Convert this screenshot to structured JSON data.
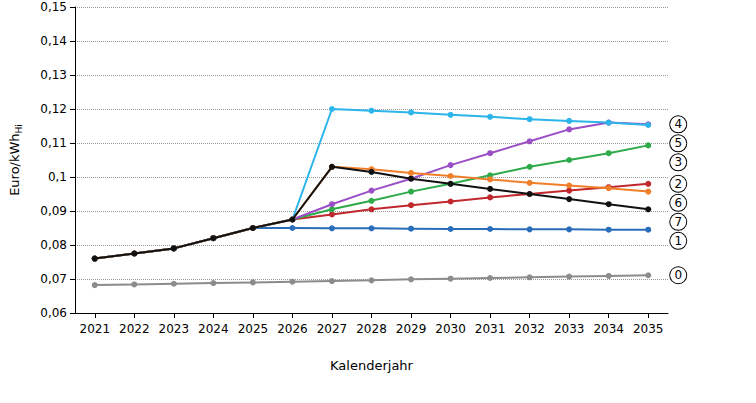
{
  "chart_data": {
    "type": "line",
    "ylabel": "Euro/kWh",
    "ylabel_subscript": "Hi",
    "xlabel": "Kalenderjahr",
    "categories": [
      "2021",
      "2022",
      "2023",
      "2024",
      "2025",
      "2026",
      "2027",
      "2028",
      "2029",
      "2030",
      "2031",
      "2032",
      "2033",
      "2034",
      "2035"
    ],
    "ylim": [
      0.06,
      0.15
    ],
    "yticks": [
      {
        "value": 0.06,
        "label": "0,06"
      },
      {
        "value": 0.07,
        "label": "0,07"
      },
      {
        "value": 0.08,
        "label": "0,08"
      },
      {
        "value": 0.09,
        "label": "0,09"
      },
      {
        "value": 0.1,
        "label": "0,1"
      },
      {
        "value": 0.11,
        "label": "0,11"
      },
      {
        "value": 0.12,
        "label": "0,12"
      },
      {
        "value": 0.13,
        "label": "0,13"
      },
      {
        "value": 0.14,
        "label": "0,14"
      },
      {
        "value": 0.15,
        "label": "0,15"
      }
    ],
    "grid": true,
    "marker": "circle",
    "series": [
      {
        "name": "0",
        "color": "#8c8c8c",
        "values": [
          0.0682,
          0.0684,
          0.0686,
          0.0688,
          0.069,
          0.0692,
          0.0694,
          0.0696,
          0.0699,
          0.0701,
          0.0703,
          0.0705,
          0.0707,
          0.0709,
          0.0711
        ]
      },
      {
        "name": "1",
        "color": "#2a6ebb",
        "values": [
          0.076,
          0.0775,
          0.079,
          0.082,
          0.085,
          0.085,
          0.0849,
          0.0849,
          0.0848,
          0.0847,
          0.0847,
          0.0846,
          0.0846,
          0.0845,
          0.0845
        ]
      },
      {
        "name": "2",
        "color": "#c0282d",
        "values": [
          0.076,
          0.0775,
          0.079,
          0.082,
          0.085,
          0.0875,
          0.089,
          0.0905,
          0.0917,
          0.0928,
          0.094,
          0.095,
          0.096,
          0.097,
          0.098
        ]
      },
      {
        "name": "3",
        "color": "#2eaa4a",
        "values": [
          0.076,
          0.0775,
          0.079,
          0.082,
          0.085,
          0.0875,
          0.0905,
          0.093,
          0.0957,
          0.098,
          0.1005,
          0.103,
          0.105,
          0.107,
          0.1093
        ]
      },
      {
        "name": "4",
        "color": "#9b4fc6",
        "values": [
          0.076,
          0.0775,
          0.079,
          0.082,
          0.085,
          0.0875,
          0.092,
          0.096,
          0.0995,
          0.1035,
          0.107,
          0.1105,
          0.114,
          0.116,
          0.1155
        ]
      },
      {
        "name": "5",
        "color": "#2cb5ea",
        "values": [
          0.076,
          0.0775,
          0.079,
          0.082,
          0.085,
          0.0875,
          0.12,
          0.1195,
          0.119,
          0.1183,
          0.1177,
          0.117,
          0.1165,
          0.116,
          0.1153
        ]
      },
      {
        "name": "6",
        "color": "#f07f2a",
        "values": [
          0.076,
          0.0775,
          0.079,
          0.082,
          0.085,
          0.0875,
          0.103,
          0.1023,
          0.1012,
          0.1003,
          0.0993,
          0.0983,
          0.0975,
          0.0967,
          0.0957
        ]
      },
      {
        "name": "7",
        "color": "#111111",
        "values": [
          0.076,
          0.0775,
          0.079,
          0.082,
          0.085,
          0.0875,
          0.103,
          0.1015,
          0.0995,
          0.098,
          0.0965,
          0.095,
          0.0935,
          0.092,
          0.0905
        ]
      }
    ]
  }
}
